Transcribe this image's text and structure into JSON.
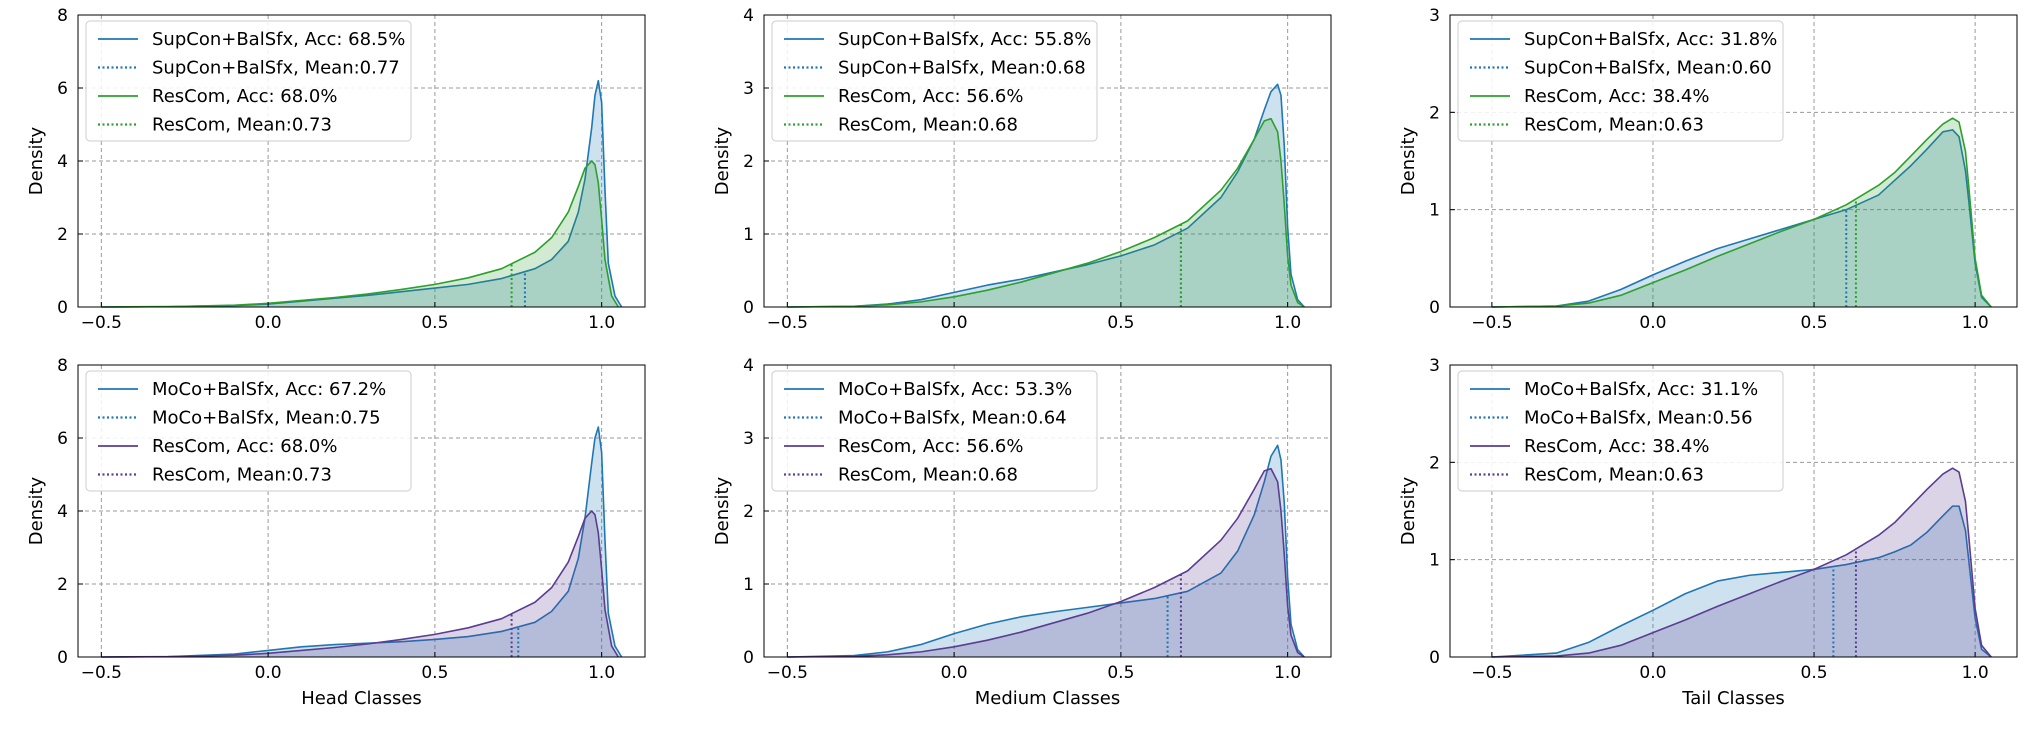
{
  "colors": {
    "blue": "#1f77b4",
    "green": "#2ca02c",
    "purple": "#5b3d91",
    "grid": "#9a9a9a",
    "legend_border": "#cccccc"
  },
  "chart_data": [
    {
      "type": "area",
      "panel": "top-left",
      "xlabel": "",
      "ylabel": "Density",
      "xlim": [
        -0.57,
        1.13
      ],
      "ylim": [
        0,
        8
      ],
      "xticks": [
        -0.5,
        0.0,
        0.5,
        1.0
      ],
      "xtick_labels": [
        "−0.5",
        "0.0",
        "0.5",
        "1.0"
      ],
      "yticks": [
        0,
        2,
        4,
        6,
        8
      ],
      "ytick_labels": [
        "0",
        "2",
        "4",
        "6",
        "8"
      ],
      "grid": true,
      "legend_position": "top-left",
      "legend": [
        "SupCon+BalSfx, Acc: 68.5%",
        "SupCon+BalSfx, Mean:0.77",
        "ResCom, Acc: 68.0%",
        "ResCom, Mean:0.73"
      ],
      "series": [
        {
          "name": "SupCon+BalSfx",
          "color": "#1f77b4",
          "mean": 0.77,
          "x": [
            -0.5,
            -0.3,
            -0.1,
            0.0,
            0.1,
            0.2,
            0.3,
            0.4,
            0.5,
            0.6,
            0.7,
            0.8,
            0.85,
            0.9,
            0.93,
            0.95,
            0.97,
            0.98,
            0.99,
            1.0,
            1.01,
            1.02,
            1.04,
            1.06
          ],
          "y": [
            0,
            0.01,
            0.04,
            0.08,
            0.16,
            0.24,
            0.32,
            0.42,
            0.52,
            0.62,
            0.78,
            1.05,
            1.3,
            1.8,
            2.6,
            3.5,
            4.9,
            5.8,
            6.2,
            5.6,
            3.2,
            1.2,
            0.3,
            0
          ]
        },
        {
          "name": "ResCom",
          "color": "#2ca02c",
          "mean": 0.73,
          "x": [
            -0.5,
            -0.3,
            -0.1,
            0.0,
            0.1,
            0.2,
            0.3,
            0.4,
            0.5,
            0.6,
            0.7,
            0.8,
            0.85,
            0.9,
            0.93,
            0.95,
            0.97,
            0.98,
            0.99,
            1.0,
            1.01,
            1.03,
            1.05
          ],
          "y": [
            0,
            0.01,
            0.05,
            0.1,
            0.18,
            0.26,
            0.36,
            0.48,
            0.62,
            0.8,
            1.05,
            1.5,
            1.9,
            2.6,
            3.3,
            3.8,
            4.0,
            3.9,
            3.4,
            2.4,
            1.3,
            0.3,
            0
          ]
        }
      ]
    },
    {
      "type": "area",
      "panel": "top-middle",
      "xlabel": "",
      "ylabel": "Density",
      "xlim": [
        -0.57,
        1.13
      ],
      "ylim": [
        0,
        4
      ],
      "xticks": [
        -0.5,
        0.0,
        0.5,
        1.0
      ],
      "xtick_labels": [
        "−0.5",
        "0.0",
        "0.5",
        "1.0"
      ],
      "yticks": [
        0,
        1,
        2,
        3,
        4
      ],
      "ytick_labels": [
        "0",
        "1",
        "2",
        "3",
        "4"
      ],
      "grid": true,
      "legend_position": "top-left",
      "legend": [
        "SupCon+BalSfx, Acc: 55.8%",
        "SupCon+BalSfx, Mean:0.68",
        "ResCom, Acc: 56.6%",
        "ResCom, Mean:0.68"
      ],
      "series": [
        {
          "name": "SupCon+BalSfx",
          "color": "#1f77b4",
          "mean": 0.68,
          "x": [
            -0.5,
            -0.3,
            -0.2,
            -0.1,
            0.0,
            0.1,
            0.2,
            0.3,
            0.4,
            0.5,
            0.6,
            0.7,
            0.8,
            0.85,
            0.9,
            0.93,
            0.95,
            0.97,
            0.98,
            0.99,
            1.0,
            1.01,
            1.03,
            1.05
          ],
          "y": [
            0,
            0.01,
            0.04,
            0.1,
            0.2,
            0.3,
            0.38,
            0.48,
            0.58,
            0.7,
            0.85,
            1.08,
            1.5,
            1.85,
            2.3,
            2.7,
            2.95,
            3.05,
            2.9,
            2.2,
            1.1,
            0.45,
            0.1,
            0
          ]
        },
        {
          "name": "ResCom",
          "color": "#2ca02c",
          "mean": 0.68,
          "x": [
            -0.5,
            -0.3,
            -0.2,
            -0.1,
            0.0,
            0.1,
            0.2,
            0.3,
            0.4,
            0.5,
            0.6,
            0.7,
            0.8,
            0.85,
            0.9,
            0.93,
            0.95,
            0.97,
            0.98,
            0.99,
            1.0,
            1.01,
            1.03,
            1.05
          ],
          "y": [
            0,
            0.01,
            0.03,
            0.07,
            0.14,
            0.23,
            0.34,
            0.47,
            0.6,
            0.76,
            0.95,
            1.18,
            1.6,
            1.9,
            2.3,
            2.55,
            2.58,
            2.4,
            2.0,
            1.4,
            0.7,
            0.3,
            0.06,
            0
          ]
        }
      ]
    },
    {
      "type": "area",
      "panel": "top-right",
      "xlabel": "",
      "ylabel": "Density",
      "xlim": [
        -0.63,
        1.13
      ],
      "ylim": [
        0,
        3
      ],
      "xticks": [
        -0.5,
        0.0,
        0.5,
        1.0
      ],
      "xtick_labels": [
        "−0.5",
        "0.0",
        "0.5",
        "1.0"
      ],
      "yticks": [
        0,
        1,
        2,
        3
      ],
      "ytick_labels": [
        "0",
        "1",
        "2",
        "3"
      ],
      "grid": true,
      "legend_position": "top-left",
      "legend": [
        "SupCon+BalSfx, Acc: 31.8%",
        "SupCon+BalSfx, Mean:0.60",
        "ResCom, Acc: 38.4%",
        "ResCom, Mean:0.63"
      ],
      "series": [
        {
          "name": "SupCon+BalSfx",
          "color": "#1f77b4",
          "mean": 0.6,
          "x": [
            -0.5,
            -0.3,
            -0.2,
            -0.1,
            0.0,
            0.1,
            0.2,
            0.3,
            0.4,
            0.5,
            0.6,
            0.7,
            0.75,
            0.8,
            0.85,
            0.9,
            0.93,
            0.95,
            0.97,
            0.98,
            1.0,
            1.02,
            1.05
          ],
          "y": [
            0,
            0.01,
            0.06,
            0.18,
            0.33,
            0.47,
            0.6,
            0.7,
            0.8,
            0.9,
            1.0,
            1.15,
            1.3,
            1.45,
            1.62,
            1.8,
            1.82,
            1.75,
            1.4,
            1.1,
            0.45,
            0.1,
            0
          ]
        },
        {
          "name": "ResCom",
          "color": "#2ca02c",
          "mean": 0.63,
          "x": [
            -0.5,
            -0.3,
            -0.2,
            -0.1,
            0.0,
            0.1,
            0.2,
            0.3,
            0.4,
            0.5,
            0.6,
            0.7,
            0.75,
            0.8,
            0.85,
            0.9,
            0.93,
            0.95,
            0.97,
            0.98,
            1.0,
            1.02,
            1.05
          ],
          "y": [
            0,
            0.01,
            0.04,
            0.12,
            0.25,
            0.38,
            0.52,
            0.65,
            0.78,
            0.9,
            1.05,
            1.25,
            1.38,
            1.55,
            1.72,
            1.88,
            1.94,
            1.9,
            1.6,
            1.25,
            0.5,
            0.12,
            0
          ]
        }
      ]
    },
    {
      "type": "area",
      "panel": "bottom-left",
      "xlabel": "Head Classes",
      "ylabel": "Density",
      "xlim": [
        -0.57,
        1.13
      ],
      "ylim": [
        0,
        8
      ],
      "xticks": [
        -0.5,
        0.0,
        0.5,
        1.0
      ],
      "xtick_labels": [
        "−0.5",
        "0.0",
        "0.5",
        "1.0"
      ],
      "yticks": [
        0,
        2,
        4,
        6,
        8
      ],
      "ytick_labels": [
        "0",
        "2",
        "4",
        "6",
        "8"
      ],
      "grid": true,
      "legend_position": "top-left",
      "legend": [
        "MoCo+BalSfx, Acc: 67.2%",
        "MoCo+BalSfx, Mean:0.75",
        "ResCom, Acc: 68.0%",
        "ResCom, Mean:0.73"
      ],
      "series": [
        {
          "name": "MoCo+BalSfx",
          "color": "#1f77b4",
          "mean": 0.75,
          "x": [
            -0.5,
            -0.3,
            -0.1,
            0.0,
            0.1,
            0.2,
            0.3,
            0.4,
            0.5,
            0.6,
            0.7,
            0.8,
            0.85,
            0.9,
            0.93,
            0.95,
            0.97,
            0.98,
            0.99,
            1.0,
            1.01,
            1.02,
            1.04,
            1.06
          ],
          "y": [
            0,
            0.01,
            0.08,
            0.18,
            0.28,
            0.34,
            0.38,
            0.42,
            0.48,
            0.56,
            0.7,
            0.95,
            1.25,
            1.8,
            2.7,
            3.8,
            5.3,
            6.0,
            6.3,
            5.6,
            3.2,
            1.2,
            0.3,
            0
          ]
        },
        {
          "name": "ResCom",
          "color": "#5b3d91",
          "mean": 0.73,
          "x": [
            -0.5,
            -0.3,
            -0.1,
            0.0,
            0.1,
            0.2,
            0.3,
            0.4,
            0.5,
            0.6,
            0.7,
            0.8,
            0.85,
            0.9,
            0.93,
            0.95,
            0.97,
            0.98,
            0.99,
            1.0,
            1.01,
            1.03,
            1.05
          ],
          "y": [
            0,
            0.01,
            0.05,
            0.1,
            0.18,
            0.26,
            0.36,
            0.48,
            0.62,
            0.8,
            1.05,
            1.5,
            1.9,
            2.6,
            3.3,
            3.8,
            4.0,
            3.9,
            3.4,
            2.4,
            1.3,
            0.3,
            0
          ]
        }
      ]
    },
    {
      "type": "area",
      "panel": "bottom-middle",
      "xlabel": "Medium Classes",
      "ylabel": "Density",
      "xlim": [
        -0.57,
        1.13
      ],
      "ylim": [
        0,
        4
      ],
      "xticks": [
        -0.5,
        0.0,
        0.5,
        1.0
      ],
      "xtick_labels": [
        "−0.5",
        "0.0",
        "0.5",
        "1.0"
      ],
      "yticks": [
        0,
        1,
        2,
        3,
        4
      ],
      "ytick_labels": [
        "0",
        "1",
        "2",
        "3",
        "4"
      ],
      "grid": true,
      "legend_position": "top-left",
      "legend": [
        "MoCo+BalSfx, Acc: 53.3%",
        "MoCo+BalSfx, Mean:0.64",
        "ResCom, Acc: 56.6%",
        "ResCom, Mean:0.68"
      ],
      "series": [
        {
          "name": "MoCo+BalSfx",
          "color": "#1f77b4",
          "mean": 0.64,
          "x": [
            -0.5,
            -0.3,
            -0.2,
            -0.1,
            0.0,
            0.1,
            0.2,
            0.3,
            0.4,
            0.5,
            0.6,
            0.7,
            0.8,
            0.85,
            0.9,
            0.93,
            0.95,
            0.97,
            0.98,
            0.99,
            1.0,
            1.01,
            1.03,
            1.05
          ],
          "y": [
            0,
            0.02,
            0.07,
            0.17,
            0.32,
            0.45,
            0.55,
            0.62,
            0.68,
            0.74,
            0.8,
            0.9,
            1.15,
            1.45,
            1.95,
            2.4,
            2.75,
            2.9,
            2.7,
            2.1,
            1.1,
            0.45,
            0.1,
            0
          ]
        },
        {
          "name": "ResCom",
          "color": "#5b3d91",
          "mean": 0.68,
          "x": [
            -0.5,
            -0.3,
            -0.2,
            -0.1,
            0.0,
            0.1,
            0.2,
            0.3,
            0.4,
            0.5,
            0.6,
            0.7,
            0.8,
            0.85,
            0.9,
            0.93,
            0.95,
            0.97,
            0.98,
            0.99,
            1.0,
            1.01,
            1.03,
            1.05
          ],
          "y": [
            0,
            0.01,
            0.03,
            0.07,
            0.14,
            0.23,
            0.34,
            0.47,
            0.6,
            0.76,
            0.95,
            1.18,
            1.6,
            1.9,
            2.3,
            2.55,
            2.58,
            2.4,
            2.0,
            1.4,
            0.7,
            0.3,
            0.06,
            0
          ]
        }
      ]
    },
    {
      "type": "area",
      "panel": "bottom-right",
      "xlabel": "Tail Classes",
      "ylabel": "Density",
      "xlim": [
        -0.63,
        1.13
      ],
      "ylim": [
        0,
        3
      ],
      "xticks": [
        -0.5,
        0.0,
        0.5,
        1.0
      ],
      "xtick_labels": [
        "−0.5",
        "0.0",
        "0.5",
        "1.0"
      ],
      "yticks": [
        0,
        1,
        2,
        3
      ],
      "ytick_labels": [
        "0",
        "1",
        "2",
        "3"
      ],
      "grid": true,
      "legend_position": "top-left",
      "legend": [
        "MoCo+BalSfx, Acc: 31.1%",
        "MoCo+BalSfx, Mean:0.56",
        "ResCom, Acc: 38.4%",
        "ResCom, Mean:0.63"
      ],
      "series": [
        {
          "name": "MoCo+BalSfx",
          "color": "#1f77b4",
          "mean": 0.56,
          "x": [
            -0.5,
            -0.3,
            -0.2,
            -0.1,
            0.0,
            0.1,
            0.2,
            0.3,
            0.4,
            0.5,
            0.6,
            0.7,
            0.75,
            0.8,
            0.85,
            0.9,
            0.93,
            0.95,
            0.97,
            0.98,
            1.0,
            1.02,
            1.05
          ],
          "y": [
            0,
            0.04,
            0.15,
            0.32,
            0.48,
            0.65,
            0.78,
            0.84,
            0.87,
            0.9,
            0.95,
            1.02,
            1.08,
            1.15,
            1.28,
            1.45,
            1.55,
            1.55,
            1.3,
            1.0,
            0.4,
            0.08,
            0
          ]
        },
        {
          "name": "ResCom",
          "color": "#5b3d91",
          "mean": 0.63,
          "x": [
            -0.5,
            -0.3,
            -0.2,
            -0.1,
            0.0,
            0.1,
            0.2,
            0.3,
            0.4,
            0.5,
            0.6,
            0.7,
            0.75,
            0.8,
            0.85,
            0.9,
            0.93,
            0.95,
            0.97,
            0.98,
            1.0,
            1.02,
            1.05
          ],
          "y": [
            0,
            0.01,
            0.04,
            0.12,
            0.25,
            0.38,
            0.52,
            0.65,
            0.78,
            0.9,
            1.05,
            1.25,
            1.38,
            1.55,
            1.72,
            1.88,
            1.94,
            1.9,
            1.6,
            1.25,
            0.5,
            0.12,
            0
          ]
        }
      ]
    }
  ]
}
